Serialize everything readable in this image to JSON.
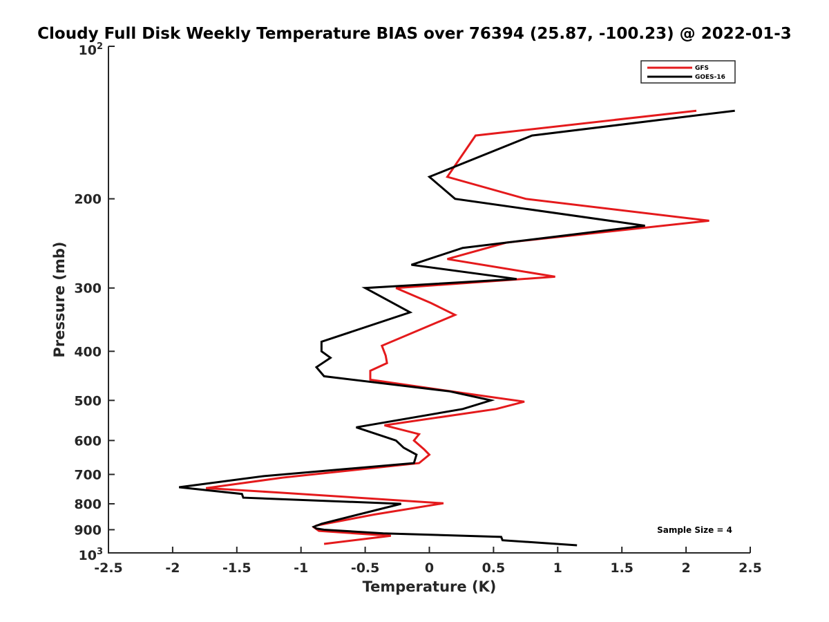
{
  "chart_data": {
    "type": "line",
    "title": "Cloudy Full Disk Weekly Temperature BIAS over 76394 (25.87, -100.23) @ 2022-01-3",
    "xlabel": "Temperature (K)",
    "ylabel": "Pressure (mb)",
    "xlim": [
      -2.5,
      2.5
    ],
    "ylim": [
      1000,
      100
    ],
    "y_scale": "log",
    "y_reversed": true,
    "grid": false,
    "legend_position": "top-right",
    "x_ticks": [
      -2.5,
      -2,
      -1.5,
      -1,
      -0.5,
      0,
      0.5,
      1,
      1.5,
      2,
      2.5
    ],
    "x_tick_labels": [
      "-2.5",
      "-2",
      "-1.5",
      "-1",
      "-0.5",
      "0",
      "0.5",
      "1",
      "1.5",
      "2",
      "2.5"
    ],
    "y_ticks": [
      200,
      300,
      400,
      500,
      600,
      700,
      800,
      900
    ],
    "y_tick_labels": [
      "200",
      "300",
      "400",
      "500",
      "600",
      "700",
      "800",
      "900"
    ],
    "y_tick_top": {
      "base": "10",
      "exp": "2"
    },
    "y_tick_bottom": {
      "base": "10",
      "exp": "3"
    },
    "annotation": "Sample Size = 4",
    "series": [
      {
        "name": "GFS",
        "color": "#e41a1c",
        "points": [
          [
            2.08,
            134
          ],
          [
            0.36,
            150
          ],
          [
            0.14,
            181
          ],
          [
            0.75,
            200
          ],
          [
            2.18,
            221
          ],
          [
            0.6,
            244
          ],
          [
            0.14,
            263
          ],
          [
            0.98,
            285
          ],
          [
            -0.26,
            300
          ],
          [
            0.01,
            321
          ],
          [
            0.2,
            339
          ],
          [
            -0.37,
            390
          ],
          [
            -0.34,
            408
          ],
          [
            -0.33,
            422
          ],
          [
            -0.46,
            437
          ],
          [
            -0.46,
            455
          ],
          [
            0.42,
            490
          ],
          [
            0.74,
            503
          ],
          [
            0.52,
            520
          ],
          [
            -0.35,
            560
          ],
          [
            -0.08,
            583
          ],
          [
            -0.12,
            600
          ],
          [
            -0.04,
            625
          ],
          [
            0.0,
            640
          ],
          [
            -0.08,
            665
          ],
          [
            -1.14,
            710
          ],
          [
            -1.74,
            745
          ],
          [
            -1.18,
            760
          ],
          [
            0.11,
            798
          ],
          [
            -0.43,
            840
          ],
          [
            -0.6,
            856
          ],
          [
            -0.88,
            883
          ],
          [
            -0.9,
            890
          ],
          [
            -0.86,
            905
          ],
          [
            -0.3,
            925
          ],
          [
            -0.82,
            960
          ]
        ]
      },
      {
        "name": "GOES-16",
        "color": "#000000",
        "points": [
          [
            2.38,
            134
          ],
          [
            0.8,
            150
          ],
          [
            0.0,
            181
          ],
          [
            0.2,
            200
          ],
          [
            1.68,
            226
          ],
          [
            0.26,
            250
          ],
          [
            -0.14,
            270
          ],
          [
            0.68,
            288
          ],
          [
            -0.5,
            300
          ],
          [
            -0.15,
            335
          ],
          [
            -0.84,
            383
          ],
          [
            -0.84,
            400
          ],
          [
            -0.77,
            412
          ],
          [
            -0.88,
            430
          ],
          [
            -0.82,
            448
          ],
          [
            0.16,
            480
          ],
          [
            0.48,
            500
          ],
          [
            0.26,
            520
          ],
          [
            -0.57,
            565
          ],
          [
            -0.26,
            600
          ],
          [
            -0.2,
            620
          ],
          [
            -0.1,
            640
          ],
          [
            -0.12,
            665
          ],
          [
            -1.28,
            705
          ],
          [
            -1.95,
            742
          ],
          [
            -1.46,
            765
          ],
          [
            -1.45,
            778
          ],
          [
            -0.22,
            800
          ],
          [
            -0.84,
            876
          ],
          [
            -0.9,
            888
          ],
          [
            -0.88,
            895
          ],
          [
            -0.82,
            900
          ],
          [
            -0.36,
            915
          ],
          [
            0.56,
            930
          ],
          [
            0.57,
            944
          ],
          [
            1.15,
            966
          ]
        ]
      }
    ]
  }
}
